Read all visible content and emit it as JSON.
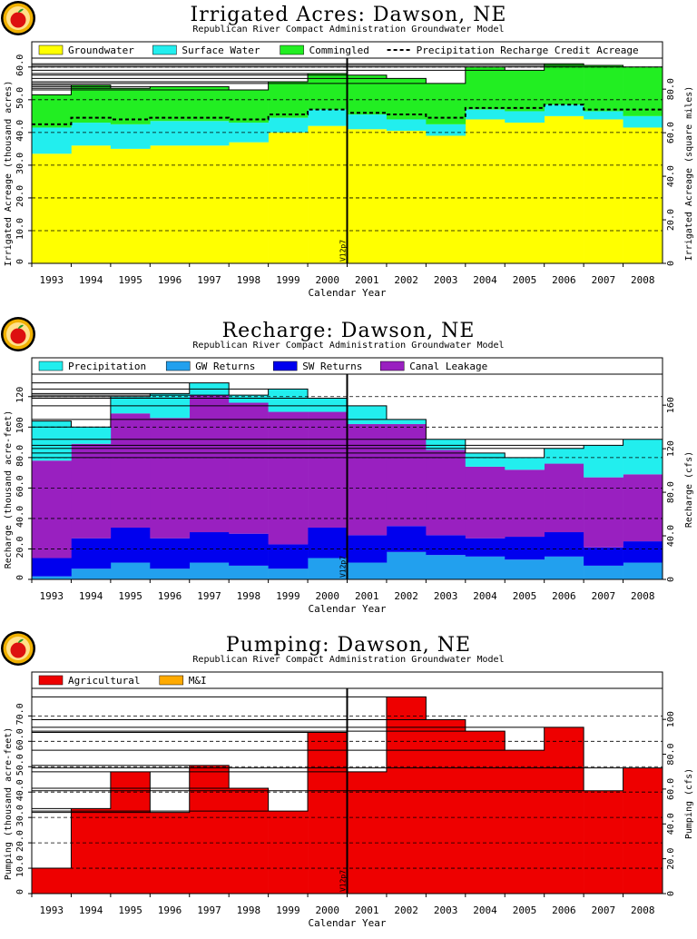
{
  "shared": {
    "subtitle": "Republican River Compact Administration Groundwater Model",
    "xlabel": "Calendar Year",
    "marker_label": "V12p7",
    "colors": {
      "groundwater": "#ffff00",
      "surface": "#22eeee",
      "commingled": "#22ee22",
      "precipitation": "#22eeee",
      "gw_returns": "#22a0ee",
      "sw_returns": "#0000ee",
      "canal": "#9920c0",
      "agricultural": "#ee0000",
      "mi": "#ffaa00"
    }
  },
  "chart_data": [
    {
      "type": "area",
      "title": "Irrigated Acres: Dawson, NE",
      "ylabel": "Irrigated Acreage (thousand acres)",
      "y2label": "Irrigated Acreage (square miles)",
      "categories": [
        "1993",
        "1994",
        "1995",
        "1996",
        "1997",
        "1998",
        "1999",
        "2000",
        "2001",
        "2002",
        "2003",
        "2004",
        "2005",
        "2006",
        "2007",
        "2008"
      ],
      "ylim": [
        0,
        60.5
      ],
      "yticks": [
        "0",
        "10.0",
        "20.0",
        "30.0",
        "40.0",
        "50.0",
        "60.0"
      ],
      "y2ticks": [
        "0",
        "20.0",
        "40.0",
        "60.0",
        "80.0"
      ],
      "legend": [
        "Groundwater",
        "Surface Water",
        "Commingled",
        "Precipitation Recharge Credit Acreage"
      ],
      "series": [
        {
          "name": "Groundwater",
          "values": [
            33.5,
            36.0,
            35.0,
            36.0,
            36.0,
            37.0,
            40.0,
            42.0,
            41.0,
            40.5,
            39.0,
            44.0,
            43.0,
            45.0,
            44.0,
            41.5
          ]
        },
        {
          "name": "Surface Water",
          "values": [
            8.0,
            7.0,
            7.5,
            7.5,
            7.5,
            6.0,
            4.5,
            5.0,
            4.5,
            3.5,
            3.5,
            3.0,
            3.5,
            3.5,
            2.5,
            3.5
          ]
        },
        {
          "name": "Commingled",
          "values": [
            10.0,
            11.5,
            11.0,
            10.5,
            10.5,
            10.0,
            11.0,
            11.0,
            12.0,
            12.5,
            12.5,
            13.0,
            12.5,
            12.5,
            14.0,
            15.0
          ]
        }
      ],
      "line": {
        "name": "Precipitation Recharge Credit Acreage",
        "values": [
          42.5,
          44.5,
          44.0,
          44.5,
          44.5,
          44.0,
          45.5,
          47.0,
          46.0,
          45.5,
          44.5,
          47.5,
          47.5,
          48.5,
          47.0,
          47.0
        ]
      },
      "marker_x": 2000.5
    },
    {
      "type": "area",
      "title": "Recharge: Dawson, NE",
      "ylabel": "Recharge (thousand acre-feet)",
      "y2label": "Recharge (cfs)",
      "categories": [
        "1993",
        "1994",
        "1995",
        "1996",
        "1997",
        "1998",
        "1999",
        "2000",
        "2001",
        "2002",
        "2003",
        "2004",
        "2005",
        "2006",
        "2007",
        "2008"
      ],
      "ylim": [
        0,
        130
      ],
      "yticks": [
        "0",
        "20.0",
        "40.0",
        "60.0",
        "80.0",
        "100",
        "120"
      ],
      "y2ticks": [
        "0",
        "40.0",
        "80.0",
        "120",
        "160"
      ],
      "legend": [
        "Precipitation",
        "GW Returns",
        "SW Returns",
        "Canal Leakage"
      ],
      "series": [
        {
          "name": "GW Returns",
          "values": [
            2,
            7,
            11,
            7,
            11,
            9,
            7,
            14,
            11,
            18,
            16,
            15,
            13,
            15,
            9,
            11
          ]
        },
        {
          "name": "SW Returns",
          "values": [
            12,
            20,
            23,
            20,
            20,
            21,
            16,
            20,
            18,
            17,
            13,
            12,
            15,
            16,
            12,
            14
          ]
        },
        {
          "name": "Canal Leakage",
          "values": [
            64,
            62,
            75,
            79,
            90,
            86,
            87,
            76,
            73,
            67,
            56,
            47,
            44,
            45,
            46,
            44
          ]
        },
        {
          "name": "Precipitation",
          "values": [
            26,
            11,
            11,
            16,
            8,
            5,
            15,
            9,
            12,
            3,
            7,
            9,
            8,
            10,
            21,
            23
          ]
        }
      ],
      "marker_x": 2000.5
    },
    {
      "type": "bar",
      "title": "Pumping: Dawson, NE",
      "ylabel": "Pumping (thousand acre-feet)",
      "y2label": "Pumping (cfs)",
      "categories": [
        "1993",
        "1994",
        "1995",
        "1996",
        "1997",
        "1998",
        "1999",
        "2000",
        "2001",
        "2002",
        "2003",
        "2004",
        "2005",
        "2006",
        "2007",
        "2008"
      ],
      "ylim": [
        0,
        78
      ],
      "yticks": [
        "0",
        "10.0",
        "20.0",
        "30.0",
        "40.0",
        "50.0",
        "60.0",
        "70.0"
      ],
      "y2ticks": [
        "0",
        "20.0",
        "40.0",
        "60.0",
        "80.0",
        "100"
      ],
      "legend": [
        "Agricultural",
        "M&I"
      ],
      "series": [
        {
          "name": "Agricultural",
          "values": [
            10,
            33.5,
            48,
            32,
            50.5,
            41.5,
            32.5,
            63.5,
            48,
            77.5,
            68.5,
            64,
            56.5,
            65.5,
            40.5,
            49.5
          ]
        },
        {
          "name": "M&I",
          "values": [
            0,
            0,
            0,
            0,
            0,
            0,
            0,
            0,
            0,
            0,
            0,
            0,
            0,
            0,
            0,
            0
          ]
        }
      ],
      "marker_x": 2000.5
    }
  ]
}
